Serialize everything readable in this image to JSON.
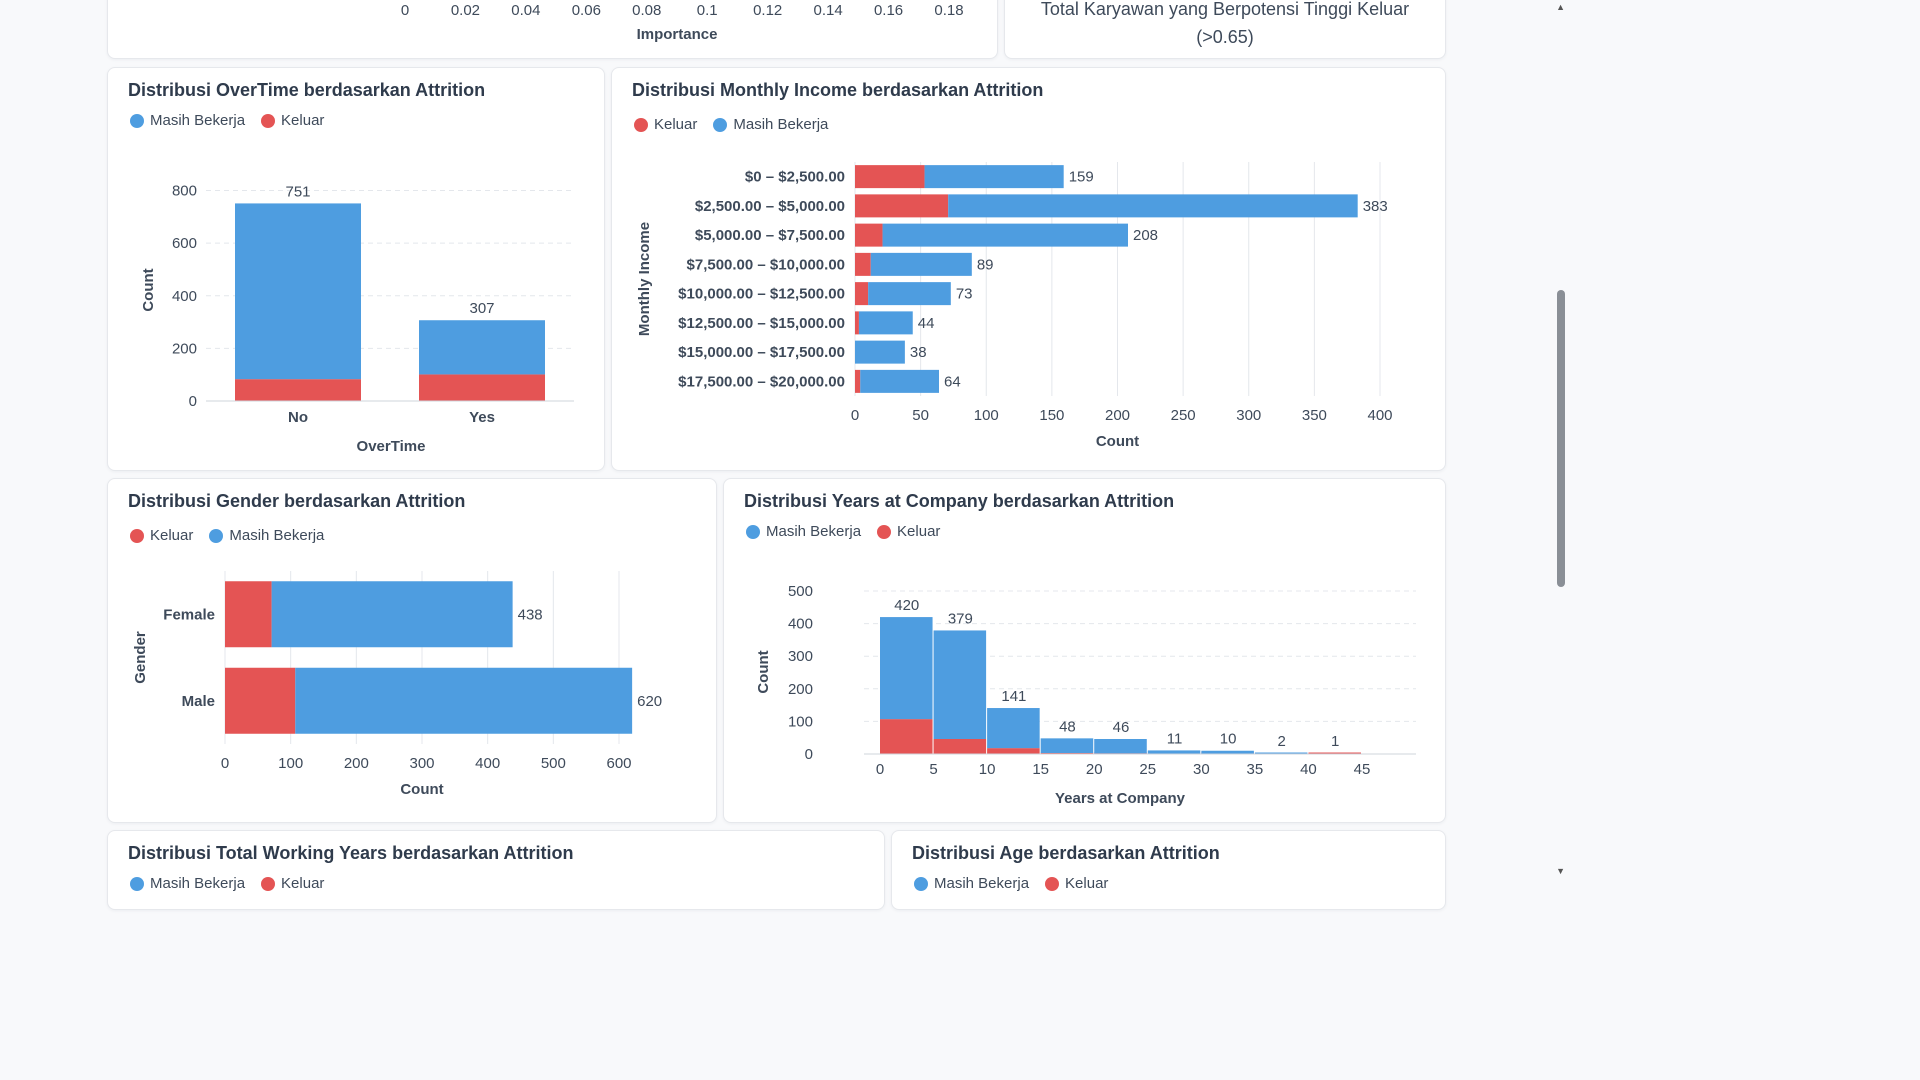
{
  "colors": {
    "stay": "#4e9de0",
    "leave": "#e45454",
    "grid": "#e4e7ec",
    "axis": "#3e4a5a"
  },
  "legend_labels": {
    "stay": "Masih Bekerja",
    "leave": "Keluar"
  },
  "importance_chart": {
    "tick_labels": [
      "0",
      "0.02",
      "0.04",
      "0.06",
      "0.08",
      "0.1",
      "0.12",
      "0.14",
      "0.16",
      "0.18"
    ],
    "xlabel": "Importance"
  },
  "kpi": {
    "label_line1": "Total Karyawan yang Berpotensi Tinggi Keluar",
    "label_line2": "(>0.65)"
  },
  "overtime_chart": {
    "title": "Distribusi OverTime berdasarkan Attrition",
    "legend_order": [
      "stay",
      "leave"
    ],
    "chart_data": {
      "type": "bar",
      "stacked": true,
      "categories": [
        "No",
        "Yes"
      ],
      "series": [
        {
          "name": "Masih Bekerja",
          "key": "stay",
          "values": [
            668,
            206
          ]
        },
        {
          "name": "Keluar",
          "key": "leave",
          "values": [
            83,
            101
          ]
        }
      ],
      "totals": [
        751,
        307
      ],
      "xlabel": "OverTime",
      "ylabel": "Count",
      "yticks": [
        "0",
        "200",
        "400",
        "600",
        "800"
      ],
      "ylim": [
        0,
        840
      ]
    }
  },
  "income_chart": {
    "title": "Distribusi Monthly Income berdasarkan Attrition",
    "legend_order": [
      "leave",
      "stay"
    ],
    "chart_data": {
      "type": "bar",
      "orientation": "horizontal",
      "stacked": true,
      "categories": [
        "$0 – $2,500.00",
        "$2,500.00 – $5,000.00",
        "$5,000.00 – $7,500.00",
        "$7,500.00 – $10,000.00",
        "$10,000.00 – $12,500.00",
        "$12,500.00 – $15,000.00",
        "$15,000.00 – $17,500.00",
        "$17,500.00 – $20,000.00"
      ],
      "series": [
        {
          "name": "Keluar",
          "key": "leave",
          "values": [
            53,
            71,
            21,
            12,
            10,
            3,
            0,
            4
          ]
        },
        {
          "name": "Masih Bekerja",
          "key": "stay",
          "values": [
            106,
            312,
            187,
            77,
            63,
            41,
            38,
            60
          ]
        }
      ],
      "totals": [
        159,
        383,
        208,
        89,
        73,
        44,
        38,
        64
      ],
      "xlabel": "Count",
      "ylabel": "Monthly Income",
      "xticks": [
        "0",
        "50",
        "100",
        "150",
        "200",
        "250",
        "300",
        "350",
        "400"
      ],
      "xlim": [
        0,
        400
      ]
    }
  },
  "gender_chart": {
    "title": "Distribusi Gender berdasarkan Attrition",
    "legend_order": [
      "leave",
      "stay"
    ],
    "chart_data": {
      "type": "bar",
      "orientation": "horizontal",
      "stacked": true,
      "categories": [
        "Female",
        "Male"
      ],
      "series": [
        {
          "name": "Keluar",
          "key": "leave",
          "values": [
            71,
            107
          ]
        },
        {
          "name": "Masih Bekerja",
          "key": "stay",
          "values": [
            367,
            513
          ]
        }
      ],
      "totals": [
        438,
        620
      ],
      "xlabel": "Count",
      "ylabel": "Gender",
      "xticks": [
        "0",
        "100",
        "200",
        "300",
        "400",
        "500",
        "600"
      ],
      "xlim": [
        0,
        600
      ]
    }
  },
  "years_chart": {
    "title": "Distribusi Years at Company berdasarkan Attrition",
    "legend_order": [
      "stay",
      "leave"
    ],
    "chart_data": {
      "type": "bar",
      "subtype": "histogram",
      "stacked": true,
      "bin_edges": [
        0,
        5,
        10,
        15,
        20,
        25,
        30,
        35,
        40,
        45
      ],
      "series": [
        {
          "name": "Keluar",
          "key": "leave",
          "values": [
            107,
            46,
            18,
            3,
            2,
            0,
            1,
            0,
            1
          ]
        },
        {
          "name": "Masih Bekerja",
          "key": "stay",
          "values": [
            313,
            333,
            123,
            45,
            44,
            11,
            9,
            2,
            0
          ]
        }
      ],
      "totals": [
        420,
        379,
        141,
        48,
        46,
        11,
        10,
        2,
        1
      ],
      "xlabel": "Years at Company",
      "ylabel": "Count",
      "xticks": [
        "0",
        "5",
        "10",
        "15",
        "20",
        "25",
        "30",
        "35",
        "40",
        "45"
      ],
      "yticks": [
        "0",
        "100",
        "200",
        "300",
        "400",
        "500"
      ],
      "ylim": [
        0,
        500
      ]
    }
  },
  "working_years_chart": {
    "title": "Distribusi Total Working Years berdasarkan Attrition"
  },
  "age_chart": {
    "title": "Distribusi Age berdasarkan Attrition"
  },
  "scrollbar": {
    "up_arrow": "▲",
    "down_arrow": "▼"
  }
}
